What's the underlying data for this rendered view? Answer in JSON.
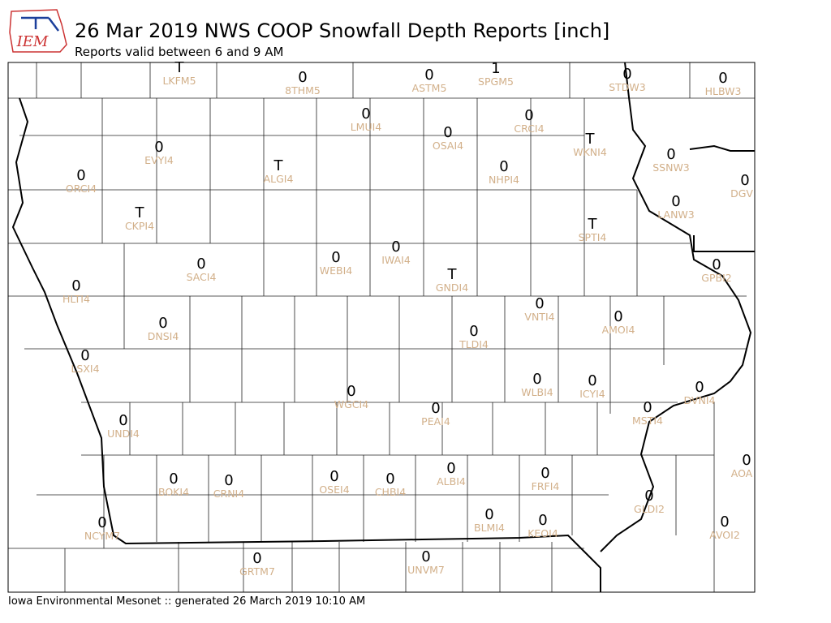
{
  "header": {
    "logo": "IEM",
    "title": "26 Mar 2019 NWS COOP Snowfall Depth Reports [inch]",
    "subtitle": "Reports valid between 6 and 9 AM"
  },
  "footer": "Iowa Environmental Mesonet :: generated 26 March 2019 10:10 AM",
  "stations": [
    {
      "id": "LKFM5",
      "report": "T"
    },
    {
      "id": "8THM5",
      "report": "0"
    },
    {
      "id": "ASTM5",
      "report": "0"
    },
    {
      "id": "SPGM5",
      "report": "1"
    },
    {
      "id": "STDW3",
      "report": "0"
    },
    {
      "id": "HLBW3",
      "report": "0"
    },
    {
      "id": "LMUI4",
      "report": "0"
    },
    {
      "id": "CRCI4",
      "report": "0"
    },
    {
      "id": "OSAI4",
      "report": "0"
    },
    {
      "id": "WKNI4",
      "report": "T"
    },
    {
      "id": "EVYI4",
      "report": "0"
    },
    {
      "id": "SSNW3",
      "report": "0"
    },
    {
      "id": "ALGI4",
      "report": "T"
    },
    {
      "id": "NHPI4",
      "report": "0"
    },
    {
      "id": "ORCI4",
      "report": "0"
    },
    {
      "id": "DGV",
      "report": "0"
    },
    {
      "id": "LANW3",
      "report": "0"
    },
    {
      "id": "CKPI4",
      "report": "T"
    },
    {
      "id": "SPTI4",
      "report": "T"
    },
    {
      "id": "IWAI4",
      "report": "0"
    },
    {
      "id": "WEBI4",
      "report": "0"
    },
    {
      "id": "SACI4",
      "report": "0"
    },
    {
      "id": "GNDI4",
      "report": "T"
    },
    {
      "id": "GPBI2",
      "report": "0"
    },
    {
      "id": "HLTI4",
      "report": "0"
    },
    {
      "id": "VNTI4",
      "report": "0"
    },
    {
      "id": "AMOI4",
      "report": "0"
    },
    {
      "id": "DNSI4",
      "report": "0"
    },
    {
      "id": "TLDI4",
      "report": "0"
    },
    {
      "id": "LSXI4",
      "report": "0"
    },
    {
      "id": "WLBI4",
      "report": "0"
    },
    {
      "id": "ICYI4",
      "report": "0"
    },
    {
      "id": "DVNI4",
      "report": "0"
    },
    {
      "id": "WGCI4",
      "report": "0"
    },
    {
      "id": "PEAI4",
      "report": "0"
    },
    {
      "id": "MSTI4",
      "report": "0"
    },
    {
      "id": "UNDI4",
      "report": "0"
    },
    {
      "id": "AOA",
      "report": "0"
    },
    {
      "id": "ALBI4",
      "report": "0"
    },
    {
      "id": "BOKI4",
      "report": "0"
    },
    {
      "id": "CRNI4",
      "report": "0"
    },
    {
      "id": "OSEI4",
      "report": "0"
    },
    {
      "id": "CHBI4",
      "report": "0"
    },
    {
      "id": "FRFI4",
      "report": "0"
    },
    {
      "id": "GLDI2",
      "report": "0"
    },
    {
      "id": "BLMI4",
      "report": "0"
    },
    {
      "id": "KEOI4",
      "report": "0"
    },
    {
      "id": "AVOI2",
      "report": "0"
    },
    {
      "id": "NCYM7",
      "report": "0"
    },
    {
      "id": "GRTM7",
      "report": "0"
    },
    {
      "id": "UNVM7",
      "report": "0"
    }
  ]
}
